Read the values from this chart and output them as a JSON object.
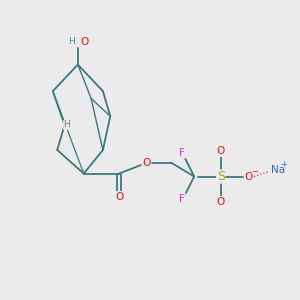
{
  "bg_color": "#ebebeb",
  "bond_color": "#3a7a7a",
  "bond_width": 1.3,
  "atom_colors": {
    "O": "#ee1111",
    "H": "#4a8a8a",
    "F": "#cc44cc",
    "S": "#aaaa00",
    "Na": "#3366cc",
    "C": "#3a7a7a"
  },
  "fs": 7.5
}
